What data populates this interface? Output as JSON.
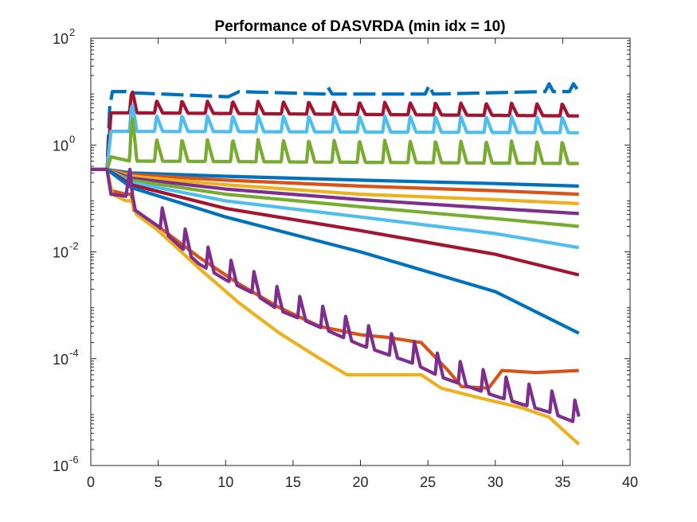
{
  "chart_data": {
    "type": "line",
    "title": "Performance of DASVRDA (min idx = 10)",
    "xlabel": "",
    "ylabel": "",
    "xlim": [
      0,
      40
    ],
    "ylim": [
      1e-06,
      100
    ],
    "yscale": "log",
    "grid": false,
    "legend": "none",
    "x_ticks": [
      "0",
      "5",
      "10",
      "15",
      "20",
      "25",
      "30",
      "35",
      "40"
    ],
    "y_ticks": [
      {
        "value": 1e-06,
        "base": "10",
        "exp": "-6"
      },
      {
        "value": 0.0001,
        "base": "10",
        "exp": "-4"
      },
      {
        "value": 0.01,
        "base": "10",
        "exp": "-2"
      },
      {
        "value": 1,
        "base": "10",
        "exp": "0"
      },
      {
        "value": 100,
        "base": "10",
        "exp": "2"
      }
    ],
    "colors": {
      "blue": "#0072BD",
      "orange": "#D95319",
      "yellow": "#EDB120",
      "purple": "#7E2F8E",
      "green": "#77AC30",
      "lightblue": "#4DBEEE",
      "red": "#A2142F"
    },
    "series": [
      {
        "color": "#0072BD",
        "dashed": true,
        "x": [
          0,
          1.2,
          1.4,
          1.6,
          2.6,
          3.0,
          10.2,
          11.0,
          17.3,
          17.6,
          17.9,
          24.8,
          25.1,
          25.4,
          33.7,
          34.0,
          34.3,
          35.5,
          35.8,
          36.2
        ],
        "y": [
          0.35,
          0.35,
          5,
          10,
          10,
          9.5,
          8,
          10,
          9,
          12,
          9,
          9,
          13,
          9,
          10,
          14,
          10,
          10,
          14,
          10
        ]
      },
      {
        "color": "#A2142F",
        "x": [
          0,
          1.2,
          1.5,
          2.9,
          3.1,
          3.4,
          36.2
        ],
        "y": [
          0.35,
          0.35,
          4,
          4,
          6.5,
          4,
          3.5
        ],
        "spikes": {
          "start": 3.0,
          "period": 1.88,
          "amp": 1.7
        }
      },
      {
        "color": "#4DBEEE",
        "x": [
          0,
          1.2,
          1.5,
          2.9,
          3.1,
          3.4,
          36.2
        ],
        "y": [
          0.35,
          0.35,
          1.8,
          1.8,
          3.2,
          1.8,
          1.7
        ],
        "spikes": {
          "start": 3.0,
          "period": 1.88,
          "amp": 2.0
        }
      },
      {
        "color": "#77AC30",
        "x": [
          0,
          1.2,
          1.5,
          2.9,
          3.1,
          3.4,
          36.2
        ],
        "y": [
          0.35,
          0.35,
          0.6,
          0.5,
          1.5,
          0.5,
          0.45
        ],
        "spikes": {
          "start": 3.0,
          "period": 1.88,
          "amp": 2.6
        }
      },
      {
        "color": "#0072BD",
        "x": [
          0,
          1.2,
          3.0,
          10,
          20,
          30,
          36.2
        ],
        "y": [
          0.35,
          0.35,
          0.3,
          0.26,
          0.22,
          0.19,
          0.17
        ]
      },
      {
        "color": "#D95319",
        "x": [
          0,
          1.2,
          3.0,
          10,
          20,
          30,
          36.2
        ],
        "y": [
          0.35,
          0.35,
          0.28,
          0.22,
          0.17,
          0.14,
          0.12
        ]
      },
      {
        "color": "#EDB120",
        "x": [
          0,
          1.2,
          3.0,
          10,
          20,
          30,
          36.2
        ],
        "y": [
          0.35,
          0.35,
          0.26,
          0.18,
          0.12,
          0.095,
          0.08
        ]
      },
      {
        "color": "#7E2F8E",
        "x": [
          0,
          1.2,
          3.0,
          10,
          20,
          30,
          36.2
        ],
        "y": [
          0.35,
          0.35,
          0.24,
          0.15,
          0.095,
          0.065,
          0.052
        ]
      },
      {
        "color": "#77AC30",
        "x": [
          0,
          1.2,
          3.0,
          10,
          20,
          30,
          36.2
        ],
        "y": [
          0.35,
          0.35,
          0.22,
          0.12,
          0.07,
          0.042,
          0.03
        ]
      },
      {
        "color": "#4DBEEE",
        "x": [
          0,
          1.2,
          3.0,
          10,
          20,
          30,
          36.2
        ],
        "y": [
          0.35,
          0.35,
          0.2,
          0.09,
          0.045,
          0.022,
          0.012
        ]
      },
      {
        "color": "#A2142F",
        "x": [
          0,
          1.2,
          3.0,
          10,
          20,
          30,
          36.2
        ],
        "y": [
          0.35,
          0.35,
          0.18,
          0.065,
          0.025,
          0.009,
          0.0037
        ]
      },
      {
        "color": "#0072BD",
        "x": [
          0,
          1.2,
          3.0,
          10,
          20,
          30,
          36.2
        ],
        "y": [
          0.35,
          0.35,
          0.16,
          0.045,
          0.01,
          0.0018,
          0.0003
        ]
      },
      {
        "color": "#D95319",
        "x": [
          0,
          1.2,
          1.5,
          2.6,
          3.0,
          3.2,
          5,
          8,
          11,
          14,
          17,
          20,
          22,
          24.5,
          26.5,
          27.5,
          29.5,
          30.5,
          33,
          36.2
        ],
        "y": [
          0.35,
          0.35,
          0.14,
          0.12,
          0.12,
          0.06,
          0.03,
          0.008,
          0.0025,
          0.0009,
          0.0004,
          0.00028,
          0.00025,
          0.0002,
          6e-05,
          3e-05,
          2.8e-05,
          6e-05,
          5.5e-05,
          6e-05
        ]
      },
      {
        "color": "#EDB120",
        "x": [
          0,
          1.2,
          1.6,
          2.6,
          3.0,
          3.4,
          5,
          8,
          11,
          14,
          17,
          19,
          20,
          24.5,
          26,
          29,
          32,
          34,
          36.2
        ],
        "y": [
          0.35,
          0.35,
          0.12,
          0.09,
          0.09,
          0.05,
          0.025,
          0.005,
          0.0011,
          0.0003,
          0.0001,
          5e-05,
          5e-05,
          5e-05,
          2.8e-05,
          1.8e-05,
          1.2e-05,
          8e-06,
          2.5e-06
        ]
      },
      {
        "color": "#7E2F8E",
        "x": [
          0,
          1.2,
          1.5,
          2.6,
          2.9,
          3.1,
          3.3,
          5,
          8,
          10,
          12,
          14,
          16,
          18,
          20,
          22,
          24,
          26,
          28,
          30,
          32,
          34,
          36.2
        ],
        "y": [
          0.35,
          0.35,
          0.12,
          0.11,
          0.35,
          0.11,
          0.06,
          0.03,
          0.006,
          0.003,
          0.0017,
          0.0008,
          0.0005,
          0.0003,
          0.00018,
          0.00012,
          8e-05,
          4.5e-05,
          3e-05,
          2e-05,
          1.4e-05,
          1e-05,
          6e-06
        ],
        "spikes": {
          "start": 5.3,
          "period": 1.7,
          "amp": 2.6
        }
      }
    ]
  }
}
